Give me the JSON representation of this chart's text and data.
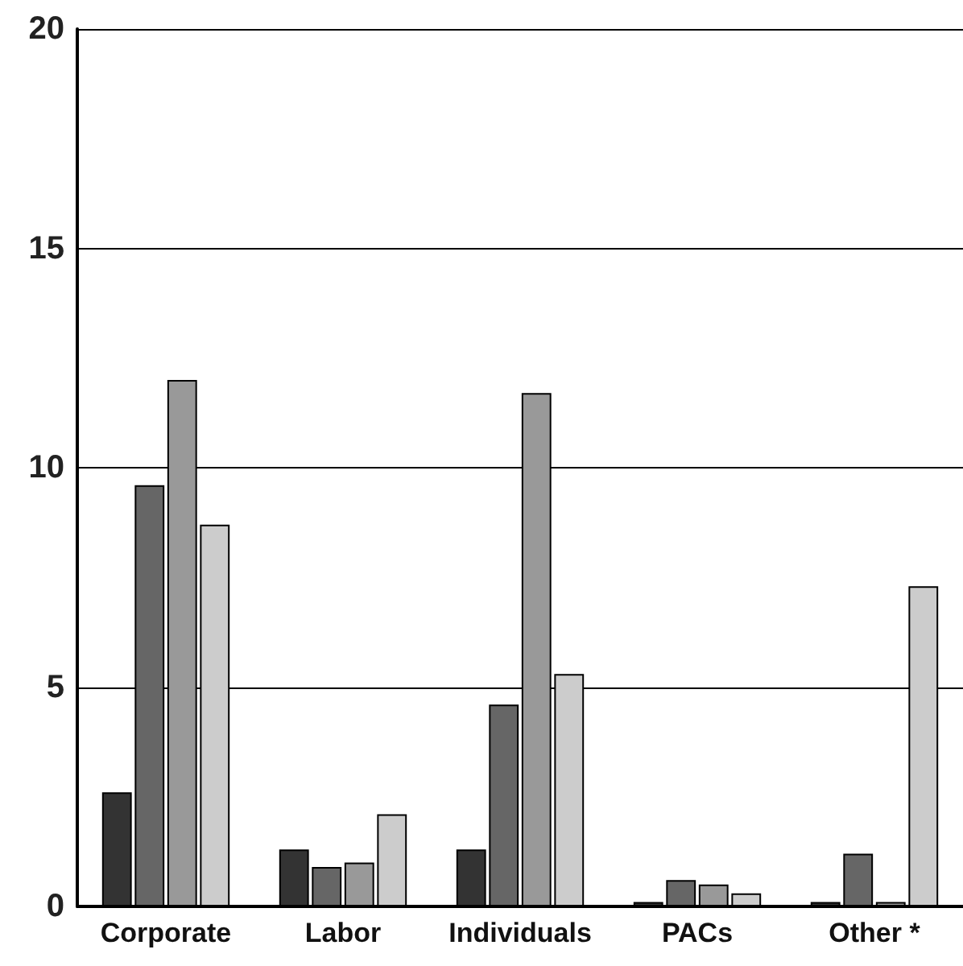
{
  "chart_data": {
    "type": "bar",
    "categories": [
      "Corporate",
      "Labor",
      "Individuals",
      "PACs",
      "Other *"
    ],
    "series": [
      {
        "color": "#333333",
        "values": [
          2.6,
          1.3,
          1.3,
          0.1,
          0.1
        ]
      },
      {
        "color": "#666666",
        "values": [
          9.6,
          0.9,
          4.6,
          0.6,
          1.2
        ]
      },
      {
        "color": "#999999",
        "values": [
          12.0,
          1.0,
          11.7,
          0.5,
          0.1
        ]
      },
      {
        "color": "#cccccc",
        "values": [
          8.7,
          2.1,
          5.3,
          0.3,
          7.3
        ]
      }
    ],
    "ylim": [
      0,
      20
    ],
    "yticks": [
      0,
      5,
      10,
      15,
      20
    ],
    "grid": "y"
  }
}
